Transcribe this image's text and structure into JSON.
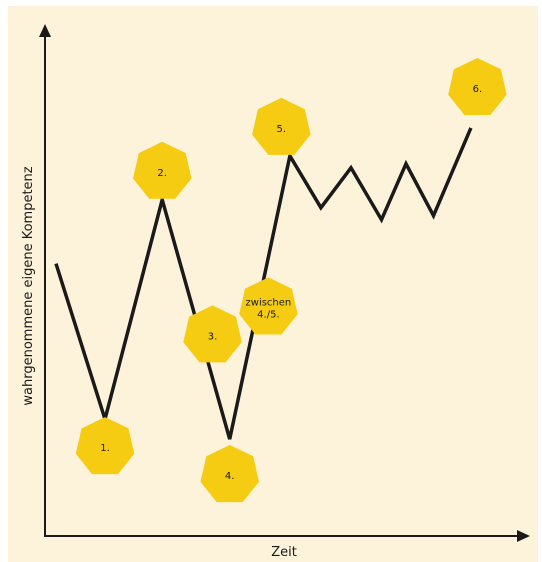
{
  "chart_data": {
    "type": "line",
    "title": "",
    "xlabel": "Zeit",
    "ylabel": "wahrgenommene eigene Kompetenz",
    "grid": false,
    "legend": "none",
    "xlim": [
      0,
      100
    ],
    "ylim": [
      0,
      100
    ],
    "series": [
      {
        "x": [
          0,
          11.4,
          24.7,
          40.4,
          54.4,
          61.6,
          68.6,
          75.7,
          81.4,
          87.8,
          96.5
        ],
        "values": [
          56,
          17,
          72,
          12,
          83,
          70,
          80,
          67,
          81,
          68,
          90
        ]
      }
    ],
    "markers": [
      {
        "label": "1.",
        "x": 11.4,
        "y": 10
      },
      {
        "label": "2.",
        "x": 24.7,
        "y": 79
      },
      {
        "label": "3.",
        "x": 36.4,
        "y": 38
      },
      {
        "label": "4.",
        "x": 40.4,
        "y": 3
      },
      {
        "label": "zwischen",
        "label2": "4./5.",
        "x": 49.4,
        "y": 45
      },
      {
        "label": "5.",
        "x": 52.4,
        "y": 90
      },
      {
        "label": "6.",
        "x": 98.0,
        "y": 100
      }
    ],
    "colors": {
      "line": "#1a1a1a",
      "marker": "#f5cc12",
      "background": "#fdf3da"
    }
  }
}
